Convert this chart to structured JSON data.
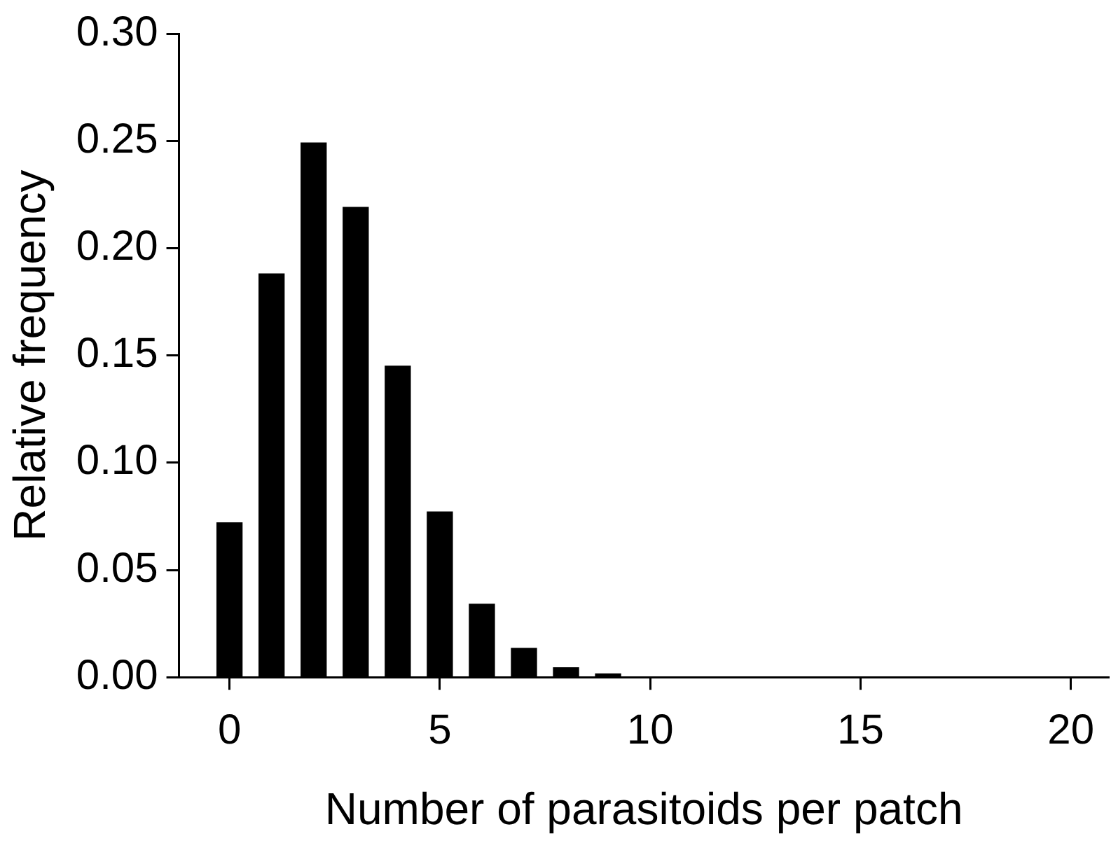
{
  "chart_data": {
    "type": "bar",
    "xlabel": "Number of parasitoids per patch",
    "ylabel": "Relative frequency",
    "x": [
      0,
      1,
      2,
      3,
      4,
      5,
      6,
      7,
      8,
      9
    ],
    "values": [
      0.072,
      0.188,
      0.249,
      0.219,
      0.145,
      0.077,
      0.034,
      0.0135,
      0.0044,
      0.0016
    ],
    "color": "#000000",
    "xlim": [
      -1.2,
      20.9
    ],
    "xticks": [
      0,
      5,
      10,
      15,
      20
    ],
    "ylim": [
      0,
      0.3
    ],
    "yticks": [
      {
        "value": 0,
        "label": "0.00"
      },
      {
        "value": 0.05,
        "label": "0.05"
      },
      {
        "value": 0.1,
        "label": "0.10"
      },
      {
        "value": 0.15,
        "label": "0.15"
      },
      {
        "value": 0.2,
        "label": "0.20"
      },
      {
        "value": 0.25,
        "label": "0.25"
      },
      {
        "value": 0.3,
        "label": "0.30"
      }
    ],
    "grid": false,
    "legend": false
  }
}
